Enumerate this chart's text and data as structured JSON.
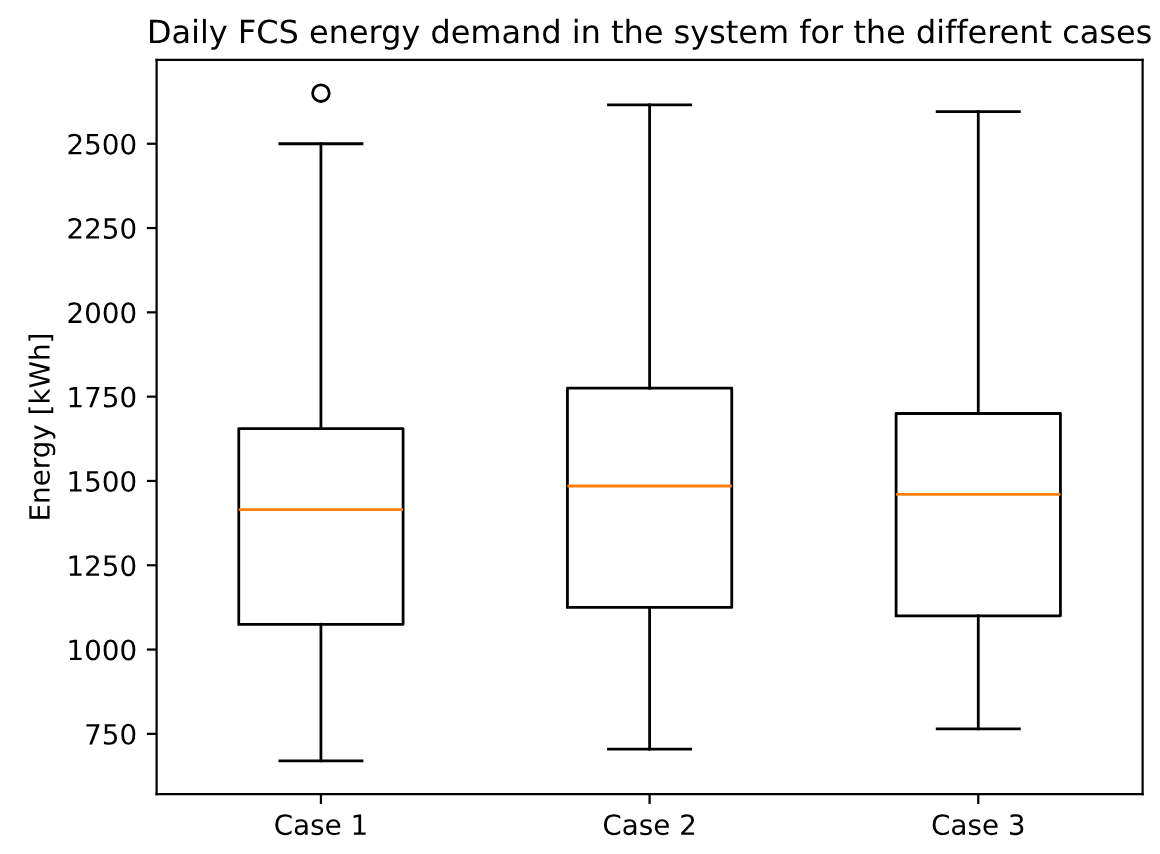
{
  "chart_data": {
    "type": "box",
    "title": "Daily FCS energy demand in the system for the different cases",
    "ylabel": "Energy [kWh]",
    "categories": [
      "Case 1",
      "Case 2",
      "Case 3"
    ],
    "boxes": [
      {
        "low": 670,
        "q1": 1075,
        "median": 1415,
        "q3": 1655,
        "high": 2500,
        "outliers": [
          2650
        ]
      },
      {
        "low": 705,
        "q1": 1125,
        "median": 1485,
        "q3": 1775,
        "high": 2615
      },
      {
        "low": 765,
        "q1": 1100,
        "median": 1460,
        "q3": 1700,
        "high": 2595
      }
    ],
    "ylim": [
      571,
      2749
    ],
    "yticks": [
      750,
      1000,
      1250,
      1500,
      1750,
      2000,
      2250,
      2500
    ],
    "grid": false
  }
}
